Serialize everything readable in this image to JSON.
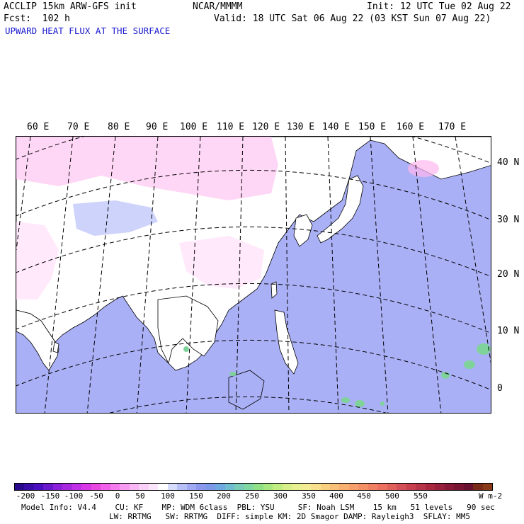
{
  "header": {
    "model": "ACCLIP 15km ARW-GFS init",
    "forecast": "Fcst:  102 h",
    "title": "UPWARD HEAT FLUX AT THE SURFACE",
    "center": "NCAR/MMMM",
    "init": "Init: 12 UTC Tue 02 Aug 22",
    "valid": "Valid: 18 UTC Sat 06 Aug 22 (03 KST Sun 07 Aug 22)"
  },
  "map": {
    "lon_labels": [
      "60 E",
      "70 E",
      "80 E",
      "90 E",
      "100 E",
      "110 E",
      "120 E",
      "130 E",
      "140 E",
      "150 E",
      "160 E",
      "170 E"
    ],
    "lat_labels": [
      "40 N",
      "30 N",
      "20 N",
      "10 N",
      "0"
    ],
    "colors": {
      "ocean": "#aab0f5",
      "land": "#ffffff",
      "pink": "#ffb6f0",
      "green": "#7fd29a"
    }
  },
  "colorbar": {
    "labels": [
      "-200",
      "-150",
      "-100",
      "-50",
      "0",
      "50",
      "100",
      "150",
      "200",
      "250",
      "300",
      "350",
      "400",
      "450",
      "500",
      "550"
    ],
    "units": "W m-2",
    "colors": [
      "#2a0a8c",
      "#3a0ca8",
      "#4a10c0",
      "#6a18cc",
      "#8a20d8",
      "#a828e0",
      "#c030e8",
      "#d838e8",
      "#e848e0",
      "#f060e8",
      "#f47cee",
      "#f69af2",
      "#f8b6f4",
      "#fad0f8",
      "#fce6fc",
      "#ffffff",
      "#d8dcfc",
      "#b8c0f8",
      "#a0aaf4",
      "#8c98ee",
      "#7c98e8",
      "#70a8e0",
      "#70bcd0",
      "#78ccb8",
      "#80d8a0",
      "#90e088",
      "#a8e880",
      "#c0ee80",
      "#d8f088",
      "#e8f090",
      "#f4ec94",
      "#f8e08c",
      "#f8d080",
      "#f8c078",
      "#f8b070",
      "#f8a06c",
      "#f49068",
      "#f08064",
      "#ec7060",
      "#e0605c",
      "#d45058",
      "#c84050",
      "#b83448",
      "#a82840",
      "#98203c",
      "#881838",
      "#781434",
      "#681030",
      "#7a2a18",
      "#8a3a18"
    ]
  },
  "footer": {
    "line1": "Model Info: V4.4    CU: KF    MP: WDM 6class  PBL: YSU     SF: Noah LSM    15 km   51 levels   90 sec",
    "line2": "LW: RRTMG   SW: RRTMG  DIFF: simple KM: 2D Smagor DAMP: Rayleigh3  SFLAY: MM5"
  }
}
